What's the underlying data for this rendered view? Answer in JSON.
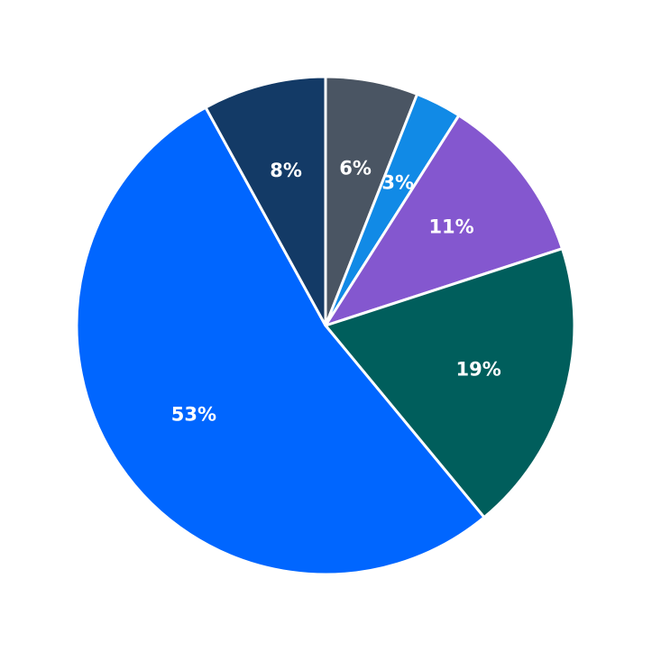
{
  "chart_data": {
    "type": "pie",
    "values": [
      6,
      3,
      11,
      19,
      53,
      8
    ],
    "value_labels": [
      "6%",
      "3%",
      "11%",
      "19%",
      "53%",
      "8%"
    ],
    "colors": [
      "#4a5563",
      "#118ae6",
      "#8457cf",
      "#005e5c",
      "#0066ff",
      "#133a66"
    ]
  }
}
